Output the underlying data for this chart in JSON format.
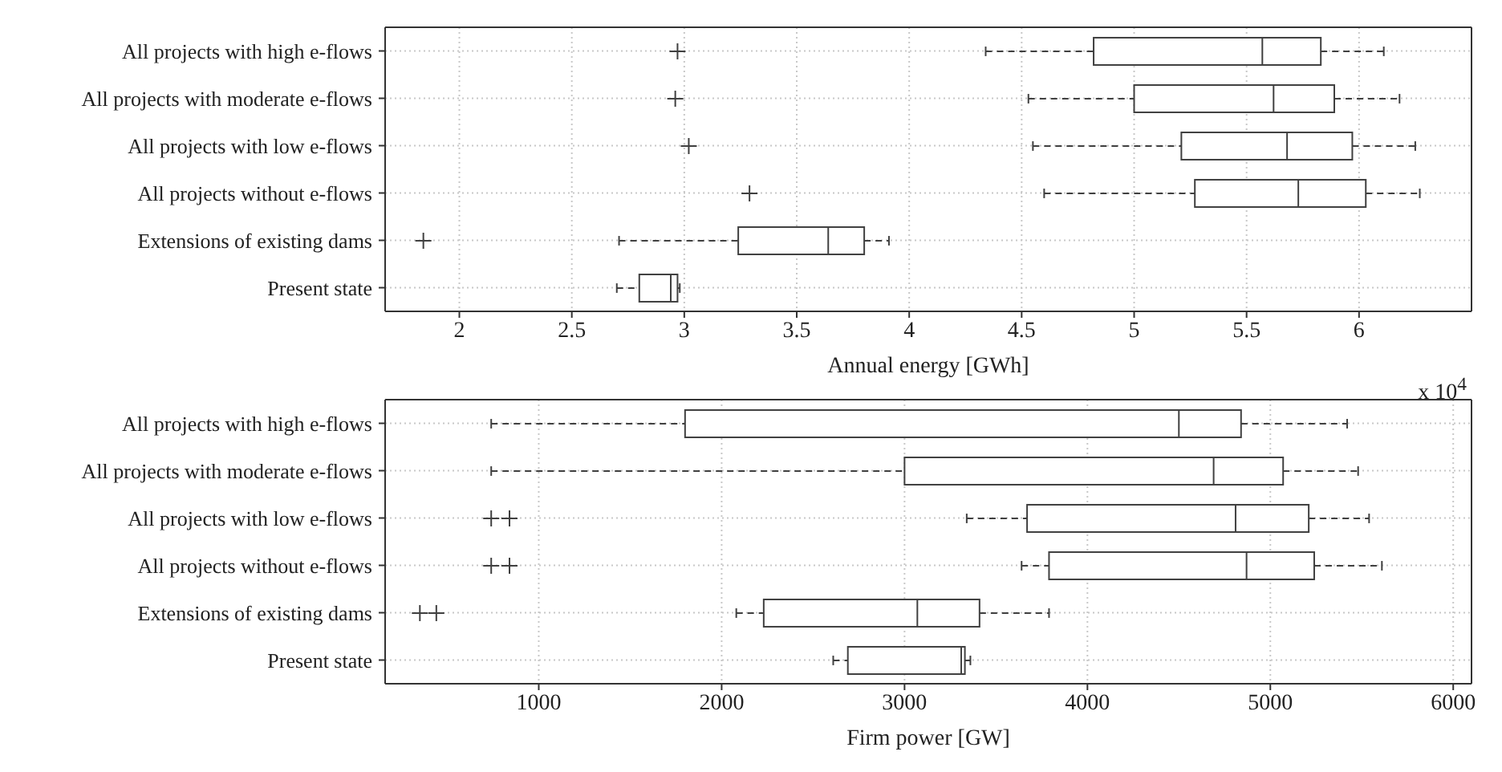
{
  "chart_data": [
    {
      "type": "box",
      "orientation": "horizontal",
      "color": "#404040",
      "grid": true,
      "xlabel": "Annual energy [GWh]",
      "annotations": [
        "x 10$^{4}$"
      ],
      "categories": [
        "All projects with high e-flows",
        "All projects with moderate e-flows",
        "All projects with low e-flows",
        "All projects without e-flows",
        "Extensions of existing dams",
        "Present state"
      ],
      "boxes": [
        {
          "low": 4.34,
          "q1": 4.82,
          "median": 5.57,
          "q3": 5.83,
          "high": 6.11,
          "outliers": [
            2.97
          ]
        },
        {
          "low": 4.53,
          "q1": 5.0,
          "median": 5.62,
          "q3": 5.89,
          "high": 6.18,
          "outliers": [
            2.96
          ]
        },
        {
          "low": 4.55,
          "q1": 5.21,
          "median": 5.68,
          "q3": 5.97,
          "high": 6.25,
          "outliers": [
            3.02
          ]
        },
        {
          "low": 4.6,
          "q1": 5.27,
          "median": 5.73,
          "q3": 6.03,
          "high": 6.27,
          "outliers": [
            3.29
          ]
        },
        {
          "low": 2.71,
          "q1": 3.24,
          "median": 3.64,
          "q3": 3.8,
          "high": 3.91,
          "outliers": [
            1.84
          ]
        },
        {
          "low": 2.7,
          "q1": 2.8,
          "median": 2.94,
          "q3": 2.97,
          "high": 2.98
        }
      ],
      "xlim": [
        1.67,
        6.5
      ],
      "xticks": [
        2,
        2.5,
        3,
        3.5,
        4,
        4.5,
        5,
        5.5,
        6
      ]
    },
    {
      "type": "box",
      "orientation": "horizontal",
      "color": "#404040",
      "grid": true,
      "xlabel": "Firm power [GW]",
      "categories": [
        "All projects with high e-flows",
        "All projects with moderate e-flows",
        "All projects with low e-flows",
        "All projects without e-flows",
        "Extensions of existing dams",
        "Present state"
      ],
      "boxes": [
        {
          "low": 740,
          "q1": 1800,
          "median": 4500,
          "q3": 4840,
          "high": 5420
        },
        {
          "low": 740,
          "q1": 3000,
          "median": 4690,
          "q3": 5070,
          "high": 5480
        },
        {
          "low": 3340,
          "q1": 3670,
          "median": 4810,
          "q3": 5210,
          "high": 5540,
          "outliers": [
            740,
            840
          ]
        },
        {
          "low": 3640,
          "q1": 3790,
          "median": 4870,
          "q3": 5240,
          "high": 5610,
          "outliers": [
            740,
            840
          ]
        },
        {
          "low": 2080,
          "q1": 2230,
          "median": 3070,
          "q3": 3410,
          "high": 3790,
          "outliers": [
            350,
            440
          ]
        },
        {
          "low": 2610,
          "q1": 2690,
          "median": 3310,
          "q3": 3330,
          "high": 3360
        }
      ],
      "xlim": [
        160,
        6100
      ],
      "xticks": [
        1000,
        2000,
        3000,
        4000,
        5000,
        6000
      ]
    }
  ]
}
